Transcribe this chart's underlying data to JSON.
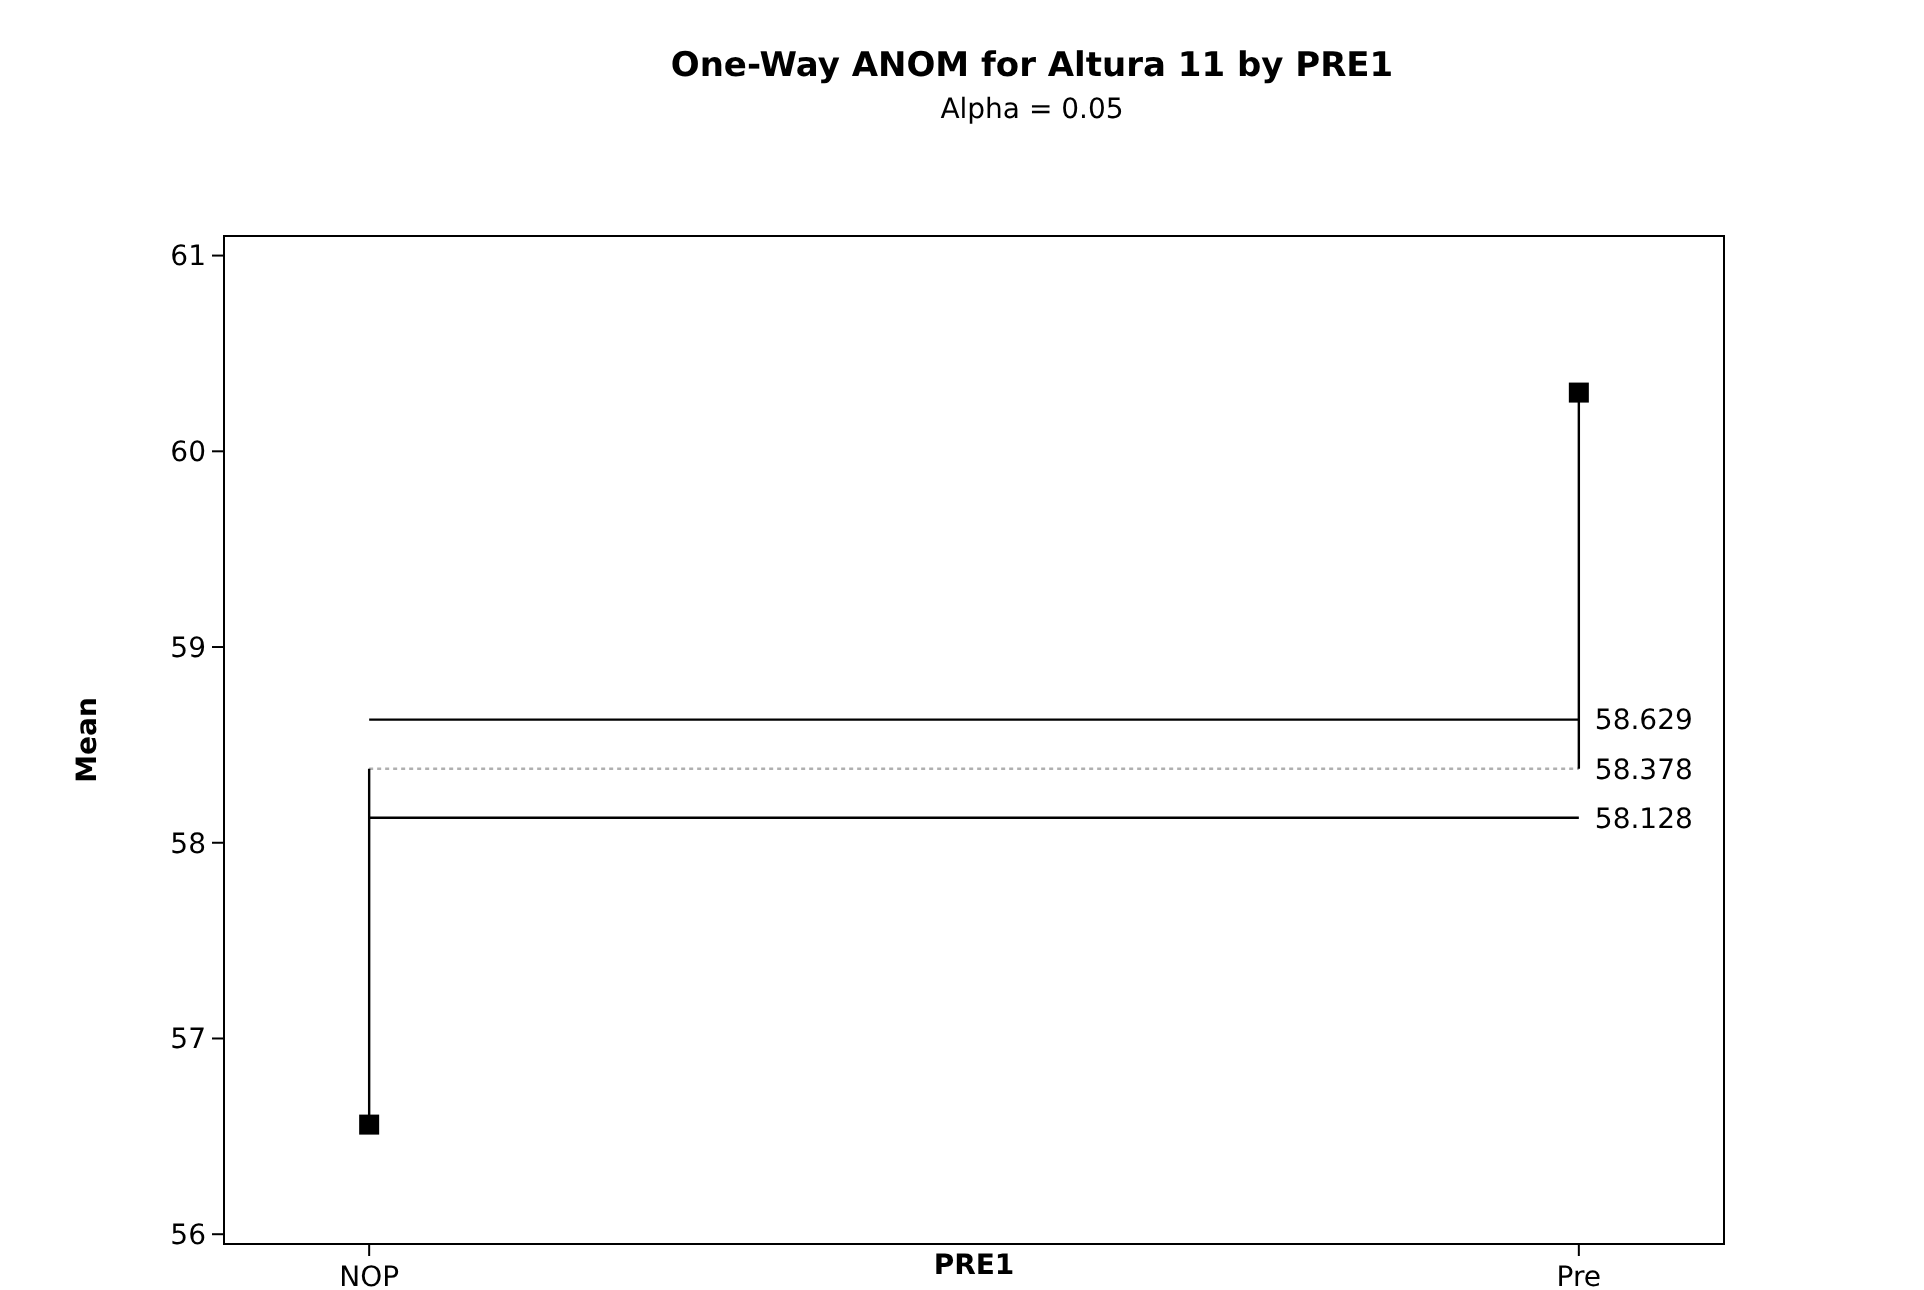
{
  "chart_data": {
    "type": "scatter",
    "title": "One-Way ANOM for Altura 11 by PRE1",
    "subtitle": "Alpha = 0.05",
    "xlabel": "PRE1",
    "ylabel": "Mean",
    "categories": [
      "NOP",
      "Pre"
    ],
    "series": [
      {
        "color": "#000000",
        "values": [
          56.56,
          60.3
        ],
        "errors": [
          [
            56.56,
            58.378
          ],
          [
            58.378,
            60.3
          ]
        ]
      }
    ],
    "marker": "square",
    "ylim": [
      55.95,
      61.1
    ],
    "yticks": [
      56,
      57,
      58,
      59,
      60,
      61
    ],
    "grid": false,
    "ref_lines": [
      {
        "axis": "y",
        "value": 58.629,
        "label": "58.629",
        "color": "#000000",
        "line_style": "solid"
      },
      {
        "axis": "y",
        "value": 58.378,
        "label": "58.378",
        "color": "#b0b0b0",
        "line_style": "dotted"
      },
      {
        "axis": "y",
        "value": 58.128,
        "label": "58.128",
        "color": "#000000",
        "line_style": "solid"
      }
    ]
  }
}
